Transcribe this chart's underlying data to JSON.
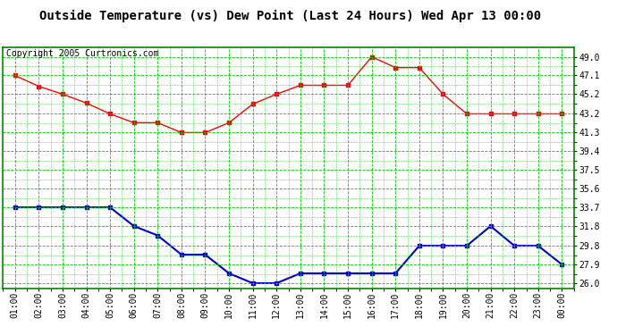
{
  "title": "Outside Temperature (vs) Dew Point (Last 24 Hours) Wed Apr 13 00:00",
  "copyright": "Copyright 2005 Curtronics.com",
  "x_labels": [
    "01:00",
    "02:00",
    "03:00",
    "04:00",
    "05:00",
    "06:00",
    "07:00",
    "08:00",
    "09:00",
    "10:00",
    "11:00",
    "12:00",
    "13:00",
    "14:00",
    "15:00",
    "16:00",
    "17:00",
    "18:00",
    "19:00",
    "20:00",
    "21:00",
    "22:00",
    "23:00",
    "00:00"
  ],
  "red_data": [
    47.1,
    46.0,
    45.2,
    44.3,
    43.2,
    42.3,
    42.3,
    41.3,
    41.3,
    42.3,
    44.2,
    45.2,
    46.1,
    46.1,
    46.1,
    49.0,
    47.9,
    47.9,
    45.2,
    43.2,
    43.2,
    43.2,
    43.2,
    43.2
  ],
  "blue_data": [
    33.7,
    33.7,
    33.7,
    33.7,
    33.7,
    31.8,
    30.85,
    28.9,
    28.9,
    27.0,
    26.0,
    26.0,
    27.0,
    27.0,
    27.0,
    27.0,
    27.0,
    29.8,
    29.8,
    29.8,
    31.8,
    29.8,
    29.8,
    27.9
  ],
  "red_color": "#ff0000",
  "blue_color": "#0000cc",
  "bg_color": "#ffffff",
  "grid_major_color": "#00cc00",
  "grid_minor_color": "#00cc00",
  "border_color": "#008800",
  "yticks": [
    26.0,
    27.9,
    29.8,
    31.8,
    33.7,
    35.6,
    37.5,
    39.4,
    41.3,
    43.2,
    45.2,
    47.1,
    49.0
  ],
  "ylim": [
    25.5,
    50.0
  ],
  "title_fontsize": 10,
  "copyright_fontsize": 7,
  "tick_fontsize": 7,
  "marker_size": 2.5
}
